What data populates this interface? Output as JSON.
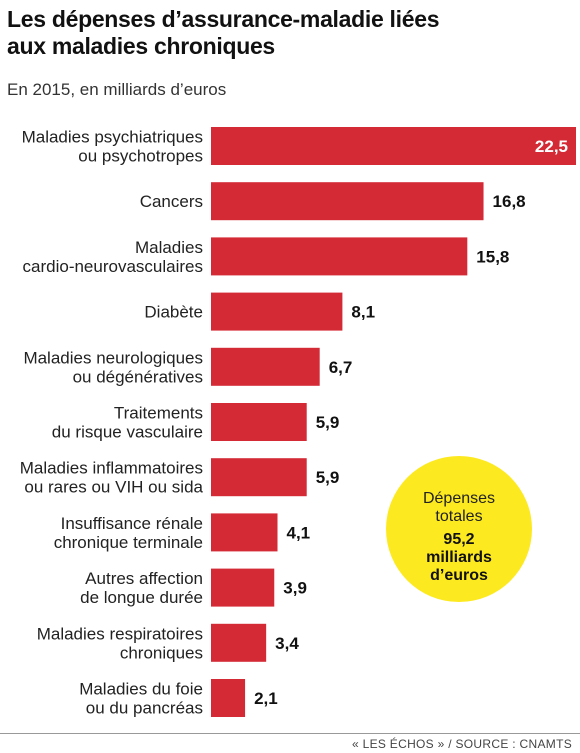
{
  "header": {
    "title_line1": "Les dépenses d’assurance-maladie liées",
    "title_line2": "aux maladies chroniques",
    "subtitle": "En 2015, en milliards d’euros"
  },
  "colors": {
    "bar": "#d42a35",
    "badge": "#fde920",
    "value_inside": "#ffffff",
    "value_outside": "#111111"
  },
  "chart_data": {
    "type": "bar",
    "orientation": "horizontal",
    "title": "Les dépenses d’assurance-maladie liées aux maladies chroniques",
    "subtitle": "En 2015, en milliards d’euros",
    "categories": [
      [
        "Maladies psychiatriques",
        "ou psychotropes"
      ],
      [
        "Cancers"
      ],
      [
        "Maladies",
        "cardio-neurovasculaires"
      ],
      [
        "Diabète"
      ],
      [
        "Maladies neurologiques",
        "ou dégénératives"
      ],
      [
        "Traitements",
        "du risque vasculaire"
      ],
      [
        "Maladies inflammatoires",
        "ou rares ou VIH ou sida"
      ],
      [
        "Insuffisance rénale",
        "chronique terminale"
      ],
      [
        "Autres affection",
        "de longue durée"
      ],
      [
        "Maladies respiratoires",
        "chroniques"
      ],
      [
        "Maladies du foie",
        "ou du pancréas"
      ]
    ],
    "values": [
      22.5,
      16.8,
      15.8,
      8.1,
      6.7,
      5.9,
      5.9,
      4.1,
      3.9,
      3.4,
      2.1
    ],
    "value_labels": [
      "22,5",
      "16,8",
      "15,8",
      "8,1",
      "6,7",
      "5,9",
      "5,9",
      "4,1",
      "3,9",
      "3,4",
      "2,1"
    ],
    "xlim": [
      0,
      22.5
    ],
    "grid": false,
    "legend": "none"
  },
  "badge": {
    "line1": "Dépenses",
    "line2": "totales",
    "line3": "95,2",
    "line4": "milliards",
    "line5": "d’euros"
  },
  "footer": {
    "credit": "« LES ÉCHOS » / SOURCE : CNAMTS"
  }
}
